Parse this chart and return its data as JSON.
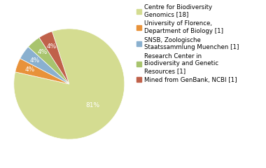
{
  "labels": [
    "Centre for Biodiversity\nGenomics [18]",
    "University of Florence,\nDepartment of Biology [1]",
    "SNSB, Zoologische\nStaatssammlung Muenchen [1]",
    "Research Center in\nBiodiversity and Genetic\nResources [1]",
    "Mined from GenBank, NCBI [1]"
  ],
  "values": [
    81,
    4,
    4,
    4,
    4
  ],
  "pct_labels": [
    "81%",
    "4%",
    "4%",
    "4%",
    "4%"
  ],
  "colors": [
    "#d4dc91",
    "#e8923a",
    "#8ab0cf",
    "#a8c46e",
    "#c0614a"
  ],
  "background_color": "#ffffff",
  "text_color": "#ffffff",
  "startangle": 108,
  "fontsize": 6.5,
  "legend_fontsize": 6.2
}
